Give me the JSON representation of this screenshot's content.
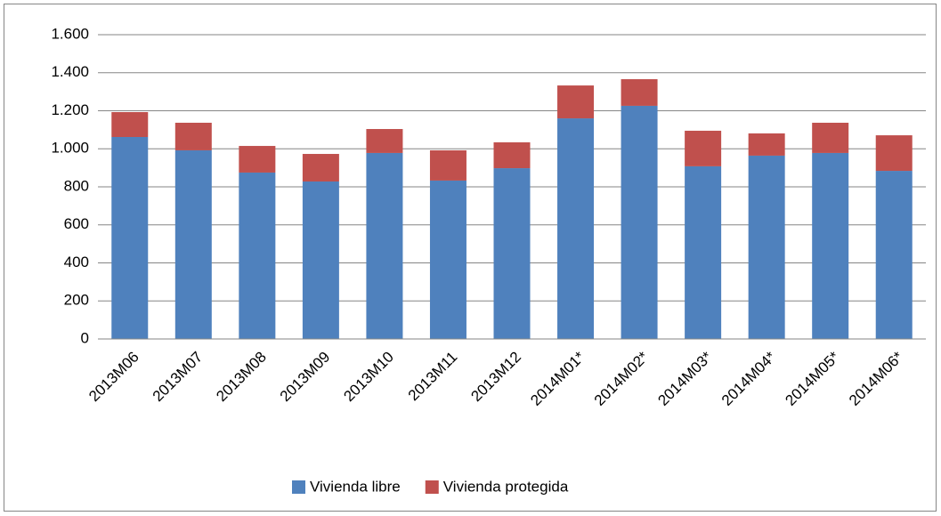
{
  "chart_data": {
    "type": "stacked_bar",
    "categories": [
      "2013M06",
      "2013M07",
      "2013M08",
      "2013M09",
      "2013M10",
      "2013M11",
      "2013M12",
      "2014M01*",
      "2014M02*",
      "2014M03*",
      "2014M04*",
      "2014M05*",
      "2014M06*"
    ],
    "series": [
      {
        "name": "Vivienda libre",
        "color": "#4f81bd",
        "values": [
          1062,
          992,
          875,
          828,
          978,
          833,
          898,
          1160,
          1226,
          908,
          964,
          978,
          884
        ]
      },
      {
        "name": "Vivienda protegida",
        "color": "#c0504d",
        "values": [
          131,
          145,
          140,
          145,
          126,
          159,
          136,
          173,
          140,
          187,
          117,
          159,
          187
        ]
      }
    ],
    "ylim": [
      0,
      1600
    ],
    "yticks": [
      0,
      200,
      400,
      600,
      800,
      {
        "value": 1000,
        "label": "1.000"
      },
      {
        "value": 1200,
        "label": "1.200"
      },
      {
        "value": 1400,
        "label": "1.400"
      },
      {
        "value": 1600,
        "label": "1.600"
      }
    ],
    "grid": true,
    "legend": "bottom"
  }
}
